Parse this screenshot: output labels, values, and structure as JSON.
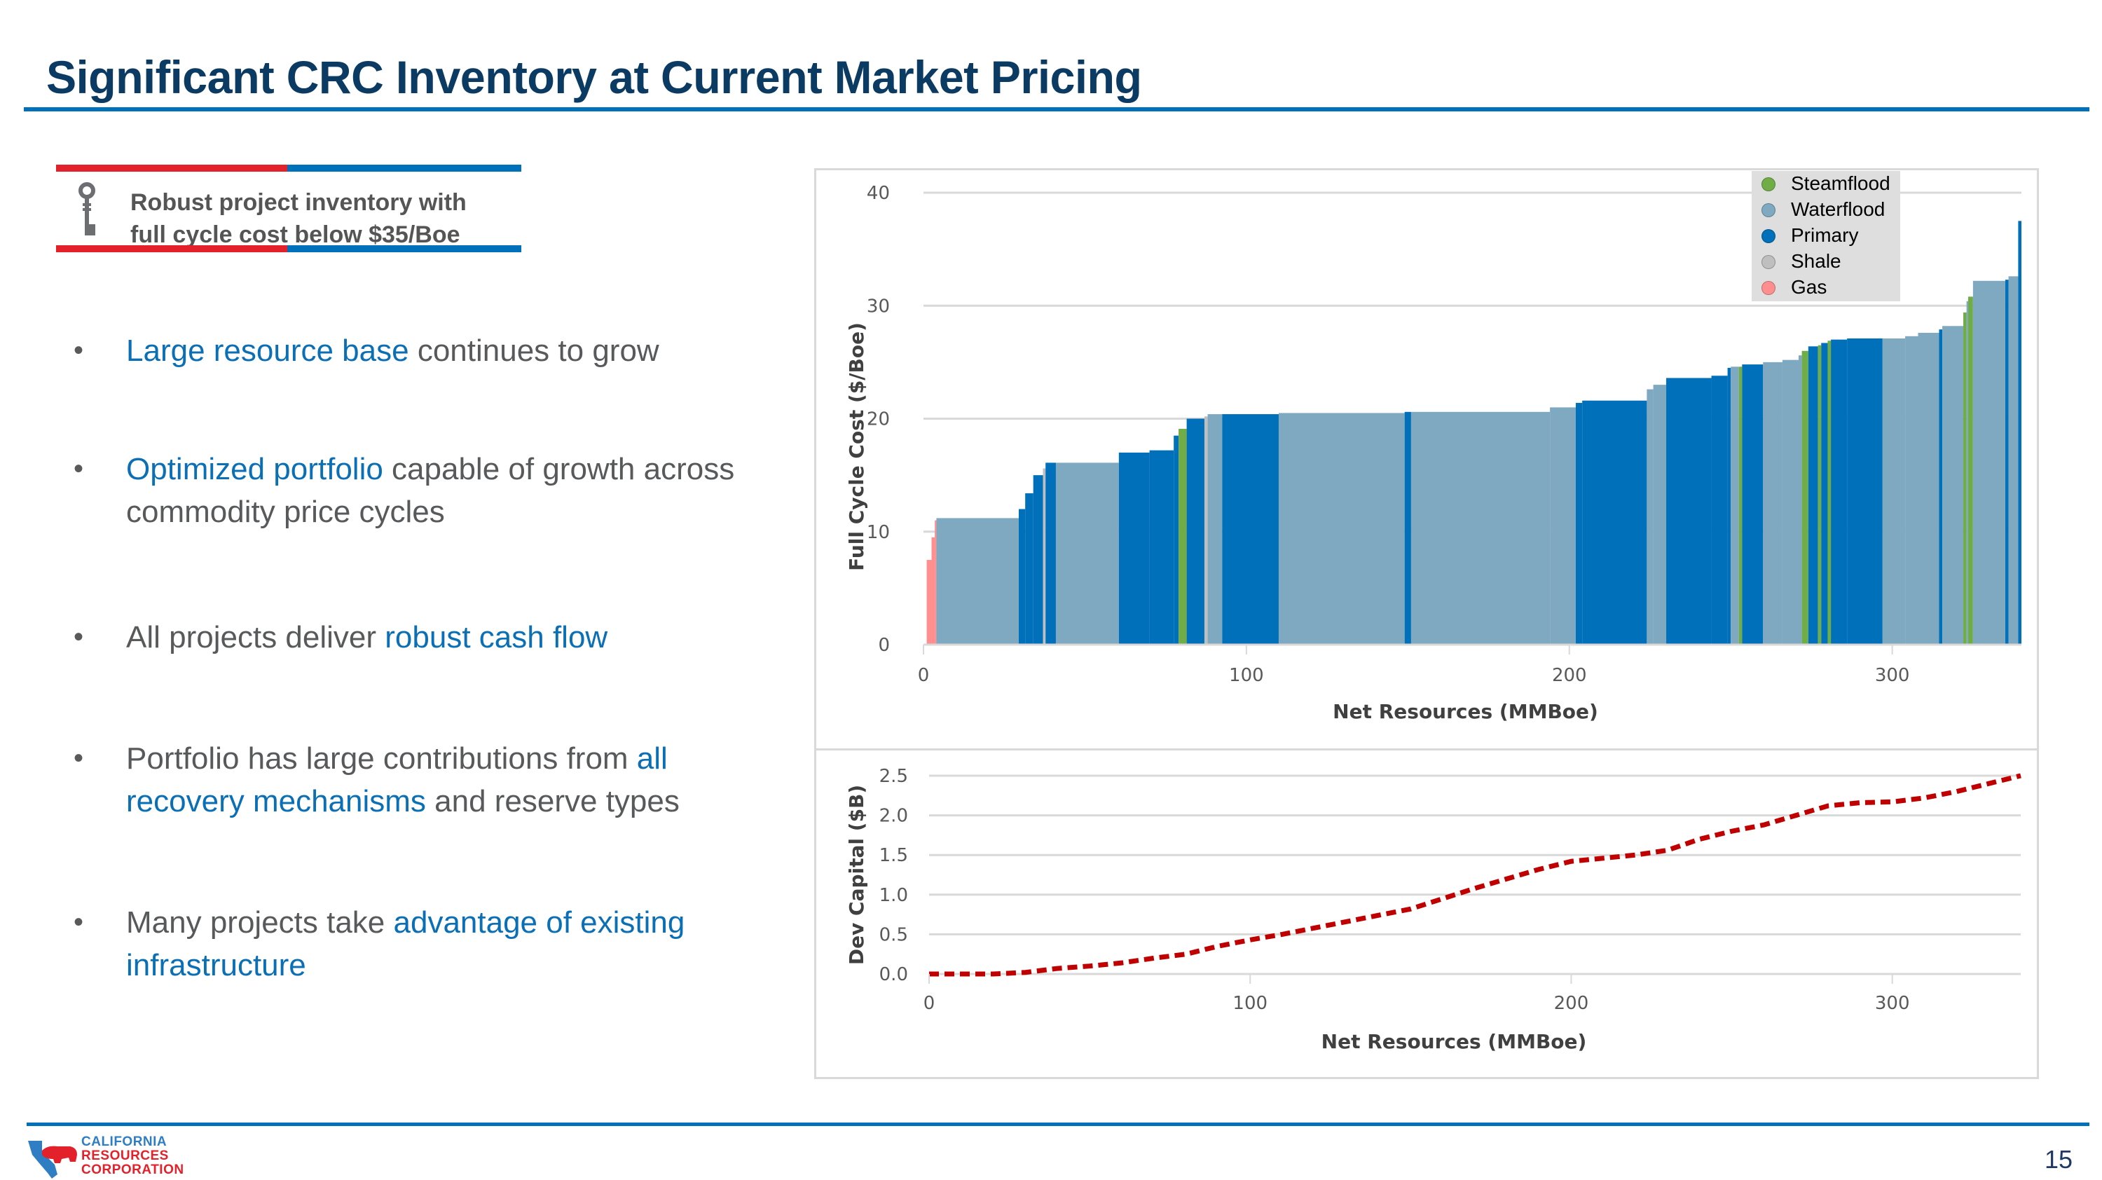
{
  "slide": {
    "title": "Significant CRC Inventory at Current Market Pricing",
    "page_number": "15"
  },
  "callout": {
    "icon": "key-icon",
    "line1": "Robust project inventory with",
    "line2": "full cycle cost below $35/Boe"
  },
  "bullets": [
    {
      "parts": [
        {
          "text": "Large resource base",
          "hl": true
        },
        {
          "text": " continues to grow",
          "hl": false
        }
      ]
    },
    {
      "parts": [
        {
          "text": "Optimized portfolio",
          "hl": true
        },
        {
          "text": " capable of growth across commodity price cycles",
          "hl": false
        }
      ]
    },
    {
      "parts": [
        {
          "text": "All projects deliver ",
          "hl": false
        },
        {
          "text": "robust cash flow",
          "hl": true
        }
      ]
    },
    {
      "parts": [
        {
          "text": "Portfolio has large contributions from ",
          "hl": false
        },
        {
          "text": "all recovery mechanisms",
          "hl": true
        },
        {
          "text": " and reserve types",
          "hl": false
        }
      ]
    },
    {
      "parts": [
        {
          "text": "Many projects take ",
          "hl": false
        },
        {
          "text": "advantage of existing infrastructure",
          "hl": true
        }
      ]
    }
  ],
  "colors": {
    "title": "#0b3a63",
    "accent_blue": "#0070ba",
    "accent_red": "#e3212b",
    "highlight_text": "#0b6fb5",
    "body_text": "#58595b"
  },
  "logo": {
    "line1": "CALIFORNIA",
    "line2": "RESOURCES",
    "line3": "CORPORATION"
  },
  "chart_data": [
    {
      "type": "bar",
      "subtype": "variable-width cost curve",
      "title": "",
      "xlabel": "Net Resources (MMBoe)",
      "ylabel": "Full Cycle Cost ($/Boe)",
      "xlim": [
        0,
        340
      ],
      "ylim": [
        0,
        40
      ],
      "xticks": [
        0,
        100,
        200,
        300
      ],
      "yticks": [
        0,
        10,
        20,
        30,
        40
      ],
      "grid": true,
      "legend_position": "top-right",
      "legend": [
        {
          "name": "Steamflood",
          "color": "#70ad47"
        },
        {
          "name": "Waterflood",
          "color": "#7fa9c0"
        },
        {
          "name": "Primary",
          "color": "#0070ba"
        },
        {
          "name": "Shale",
          "color": "#bfbfbf"
        },
        {
          "name": "Gas",
          "color": "#ff8f8f"
        }
      ],
      "segments": [
        {
          "type": "Gas",
          "x0": 1,
          "x1": 2.5,
          "y": 7.5
        },
        {
          "type": "Gas",
          "x0": 2.5,
          "x1": 3.5,
          "y": 9.5
        },
        {
          "type": "Gas",
          "x0": 3.5,
          "x1": 4,
          "y": 11
        },
        {
          "type": "Waterflood",
          "x0": 4,
          "x1": 29.5,
          "y": 11.2
        },
        {
          "type": "Primary",
          "x0": 29.5,
          "x1": 31.5,
          "y": 12
        },
        {
          "type": "Primary",
          "x0": 31.5,
          "x1": 34,
          "y": 13.4
        },
        {
          "type": "Primary",
          "x0": 34,
          "x1": 37,
          "y": 15
        },
        {
          "type": "Shale",
          "x0": 37,
          "x1": 37.8,
          "y": 15.6
        },
        {
          "type": "Primary",
          "x0": 37.8,
          "x1": 41,
          "y": 16.1
        },
        {
          "type": "Waterflood",
          "x0": 41,
          "x1": 60.5,
          "y": 16.1
        },
        {
          "type": "Primary",
          "x0": 60.5,
          "x1": 70,
          "y": 17
        },
        {
          "type": "Primary",
          "x0": 70,
          "x1": 77.5,
          "y": 17.2
        },
        {
          "type": "Primary",
          "x0": 77.5,
          "x1": 79,
          "y": 18.5
        },
        {
          "type": "Steamflood",
          "x0": 79,
          "x1": 81.5,
          "y": 19.1
        },
        {
          "type": "Primary",
          "x0": 81.5,
          "x1": 87,
          "y": 20
        },
        {
          "type": "Shale",
          "x0": 87,
          "x1": 88,
          "y": 20.2
        },
        {
          "type": "Waterflood",
          "x0": 88,
          "x1": 92.5,
          "y": 20.4
        },
        {
          "type": "Primary",
          "x0": 92.5,
          "x1": 110,
          "y": 20.4
        },
        {
          "type": "Waterflood",
          "x0": 110,
          "x1": 149,
          "y": 20.5
        },
        {
          "type": "Primary",
          "x0": 149,
          "x1": 151,
          "y": 20.6
        },
        {
          "type": "Waterflood",
          "x0": 151,
          "x1": 194,
          "y": 20.6
        },
        {
          "type": "Waterflood",
          "x0": 194,
          "x1": 202,
          "y": 21
        },
        {
          "type": "Primary",
          "x0": 202,
          "x1": 204,
          "y": 21.4
        },
        {
          "type": "Primary",
          "x0": 204,
          "x1": 224,
          "y": 21.6
        },
        {
          "type": "Waterflood",
          "x0": 224,
          "x1": 226,
          "y": 22.6
        },
        {
          "type": "Waterflood",
          "x0": 226,
          "x1": 230,
          "y": 23
        },
        {
          "type": "Primary",
          "x0": 230,
          "x1": 244,
          "y": 23.6
        },
        {
          "type": "Primary",
          "x0": 244,
          "x1": 249,
          "y": 23.8
        },
        {
          "type": "Primary",
          "x0": 249,
          "x1": 250,
          "y": 24.5
        },
        {
          "type": "Waterflood",
          "x0": 250,
          "x1": 252.5,
          "y": 24.6
        },
        {
          "type": "Steamflood",
          "x0": 252.5,
          "x1": 253.5,
          "y": 24.6
        },
        {
          "type": "Primary",
          "x0": 253.5,
          "x1": 260,
          "y": 24.8
        },
        {
          "type": "Waterflood",
          "x0": 260,
          "x1": 266,
          "y": 25
        },
        {
          "type": "Waterflood",
          "x0": 266,
          "x1": 271,
          "y": 25.2
        },
        {
          "type": "Waterflood",
          "x0": 271,
          "x1": 272,
          "y": 25.6
        },
        {
          "type": "Steamflood",
          "x0": 272,
          "x1": 274,
          "y": 26
        },
        {
          "type": "Primary",
          "x0": 274,
          "x1": 277,
          "y": 26.4
        },
        {
          "type": "Steamflood",
          "x0": 277,
          "x1": 278,
          "y": 26.5
        },
        {
          "type": "Primary",
          "x0": 278,
          "x1": 280,
          "y": 26.7
        },
        {
          "type": "Steamflood",
          "x0": 280,
          "x1": 281,
          "y": 26.9
        },
        {
          "type": "Primary",
          "x0": 281,
          "x1": 286,
          "y": 27
        },
        {
          "type": "Primary",
          "x0": 286,
          "x1": 297,
          "y": 27.1
        },
        {
          "type": "Waterflood",
          "x0": 297,
          "x1": 304,
          "y": 27.1
        },
        {
          "type": "Waterflood",
          "x0": 304,
          "x1": 308,
          "y": 27.3
        },
        {
          "type": "Waterflood",
          "x0": 308,
          "x1": 314.5,
          "y": 27.6
        },
        {
          "type": "Primary",
          "x0": 314.5,
          "x1": 315.5,
          "y": 27.9
        },
        {
          "type": "Waterflood",
          "x0": 315.5,
          "x1": 322,
          "y": 28.2
        },
        {
          "type": "Steamflood",
          "x0": 322,
          "x1": 323,
          "y": 29.4
        },
        {
          "type": "Waterflood",
          "x0": 323,
          "x1": 323.5,
          "y": 30.4
        },
        {
          "type": "Steamflood",
          "x0": 323.5,
          "x1": 325,
          "y": 30.8
        },
        {
          "type": "Waterflood",
          "x0": 325,
          "x1": 335,
          "y": 32.2
        },
        {
          "type": "Primary",
          "x0": 335,
          "x1": 336,
          "y": 32.3
        },
        {
          "type": "Waterflood",
          "x0": 336,
          "x1": 339,
          "y": 32.6
        },
        {
          "type": "Primary",
          "x0": 339,
          "x1": 340,
          "y": 37.5
        }
      ]
    },
    {
      "type": "line",
      "title": "",
      "xlabel": "Net Resources (MMBoe)",
      "ylabel": "Dev Capital   ($B)",
      "xlim": [
        0,
        340
      ],
      "ylim": [
        0,
        2.5
      ],
      "xticks": [
        0,
        100,
        200,
        300
      ],
      "yticks": [
        "0.0",
        "0.5",
        "1.0",
        "1.5",
        "2.0",
        "2.5"
      ],
      "grid": true,
      "series": [
        {
          "name": "Dev Capital",
          "color": "#c00000",
          "style": "dashed",
          "x": [
            0,
            10,
            20,
            30,
            40,
            50,
            60,
            70,
            80,
            90,
            100,
            110,
            120,
            130,
            140,
            150,
            160,
            170,
            180,
            190,
            200,
            210,
            220,
            230,
            240,
            250,
            260,
            270,
            280,
            290,
            300,
            310,
            320,
            330,
            340
          ],
          "y": [
            0.0,
            0.0,
            0.0,
            0.02,
            0.07,
            0.1,
            0.14,
            0.2,
            0.25,
            0.35,
            0.43,
            0.5,
            0.58,
            0.66,
            0.74,
            0.82,
            0.95,
            1.08,
            1.2,
            1.32,
            1.42,
            1.46,
            1.5,
            1.56,
            1.7,
            1.8,
            1.88,
            2.0,
            2.12,
            2.16,
            2.17,
            2.22,
            2.3,
            2.4,
            2.5
          ]
        }
      ]
    }
  ]
}
